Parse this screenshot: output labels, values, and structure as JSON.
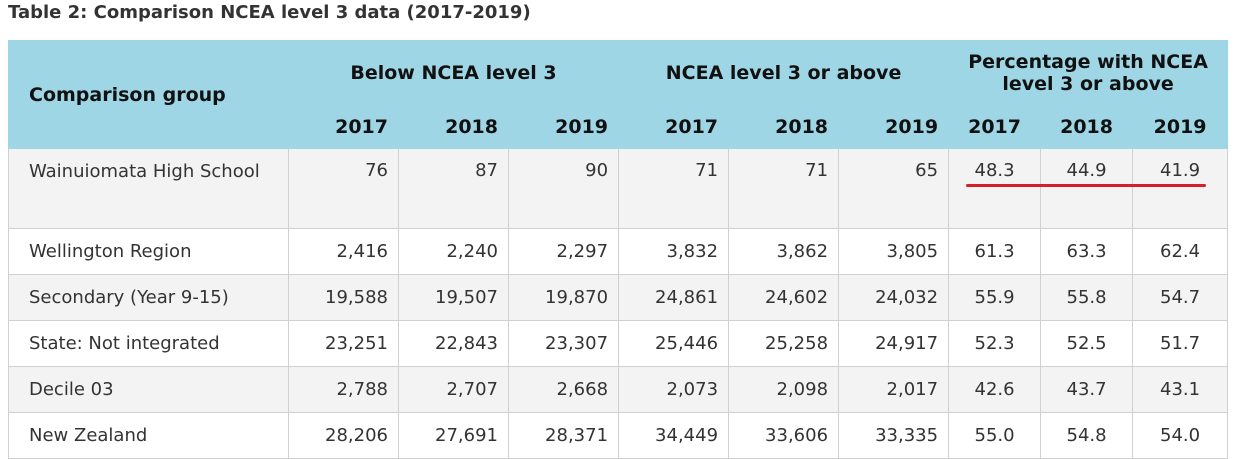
{
  "caption": "Table 2: Comparison NCEA level 3 data (2017-2019)",
  "header": {
    "group_label": "Comparison group",
    "below_label": "Below NCEA level 3",
    "above_label": "NCEA level 3 or above",
    "pct_label": "Percentage with NCEA level 3 or above",
    "years": [
      "2017",
      "2018",
      "2019"
    ]
  },
  "rows": [
    {
      "name": "Wainuiomata High School",
      "below": [
        "76",
        "87",
        "90"
      ],
      "above": [
        "71",
        "71",
        "65"
      ],
      "pct": [
        "48.3",
        "44.9",
        "41.9"
      ]
    },
    {
      "name": "Wellington Region",
      "below": [
        "2,416",
        "2,240",
        "2,297"
      ],
      "above": [
        "3,832",
        "3,862",
        "3,805"
      ],
      "pct": [
        "61.3",
        "63.3",
        "62.4"
      ]
    },
    {
      "name": "Secondary (Year 9-15)",
      "below": [
        "19,588",
        "19,507",
        "19,870"
      ],
      "above": [
        "24,861",
        "24,602",
        "24,032"
      ],
      "pct": [
        "55.9",
        "55.8",
        "54.7"
      ]
    },
    {
      "name": "State: Not integrated",
      "below": [
        "23,251",
        "22,843",
        "23,307"
      ],
      "above": [
        "25,446",
        "25,258",
        "24,917"
      ],
      "pct": [
        "52.3",
        "52.5",
        "51.7"
      ]
    },
    {
      "name": "Decile 03",
      "below": [
        "2,788",
        "2,707",
        "2,668"
      ],
      "above": [
        "2,073",
        "2,098",
        "2,017"
      ],
      "pct": [
        "42.6",
        "43.7",
        "43.1"
      ]
    },
    {
      "name": "New Zealand",
      "below": [
        "28,206",
        "27,691",
        "28,371"
      ],
      "above": [
        "34,449",
        "33,606",
        "33,335"
      ],
      "pct": [
        "55.0",
        "54.8",
        "54.0"
      ]
    }
  ],
  "highlight_color": "#d4202c"
}
